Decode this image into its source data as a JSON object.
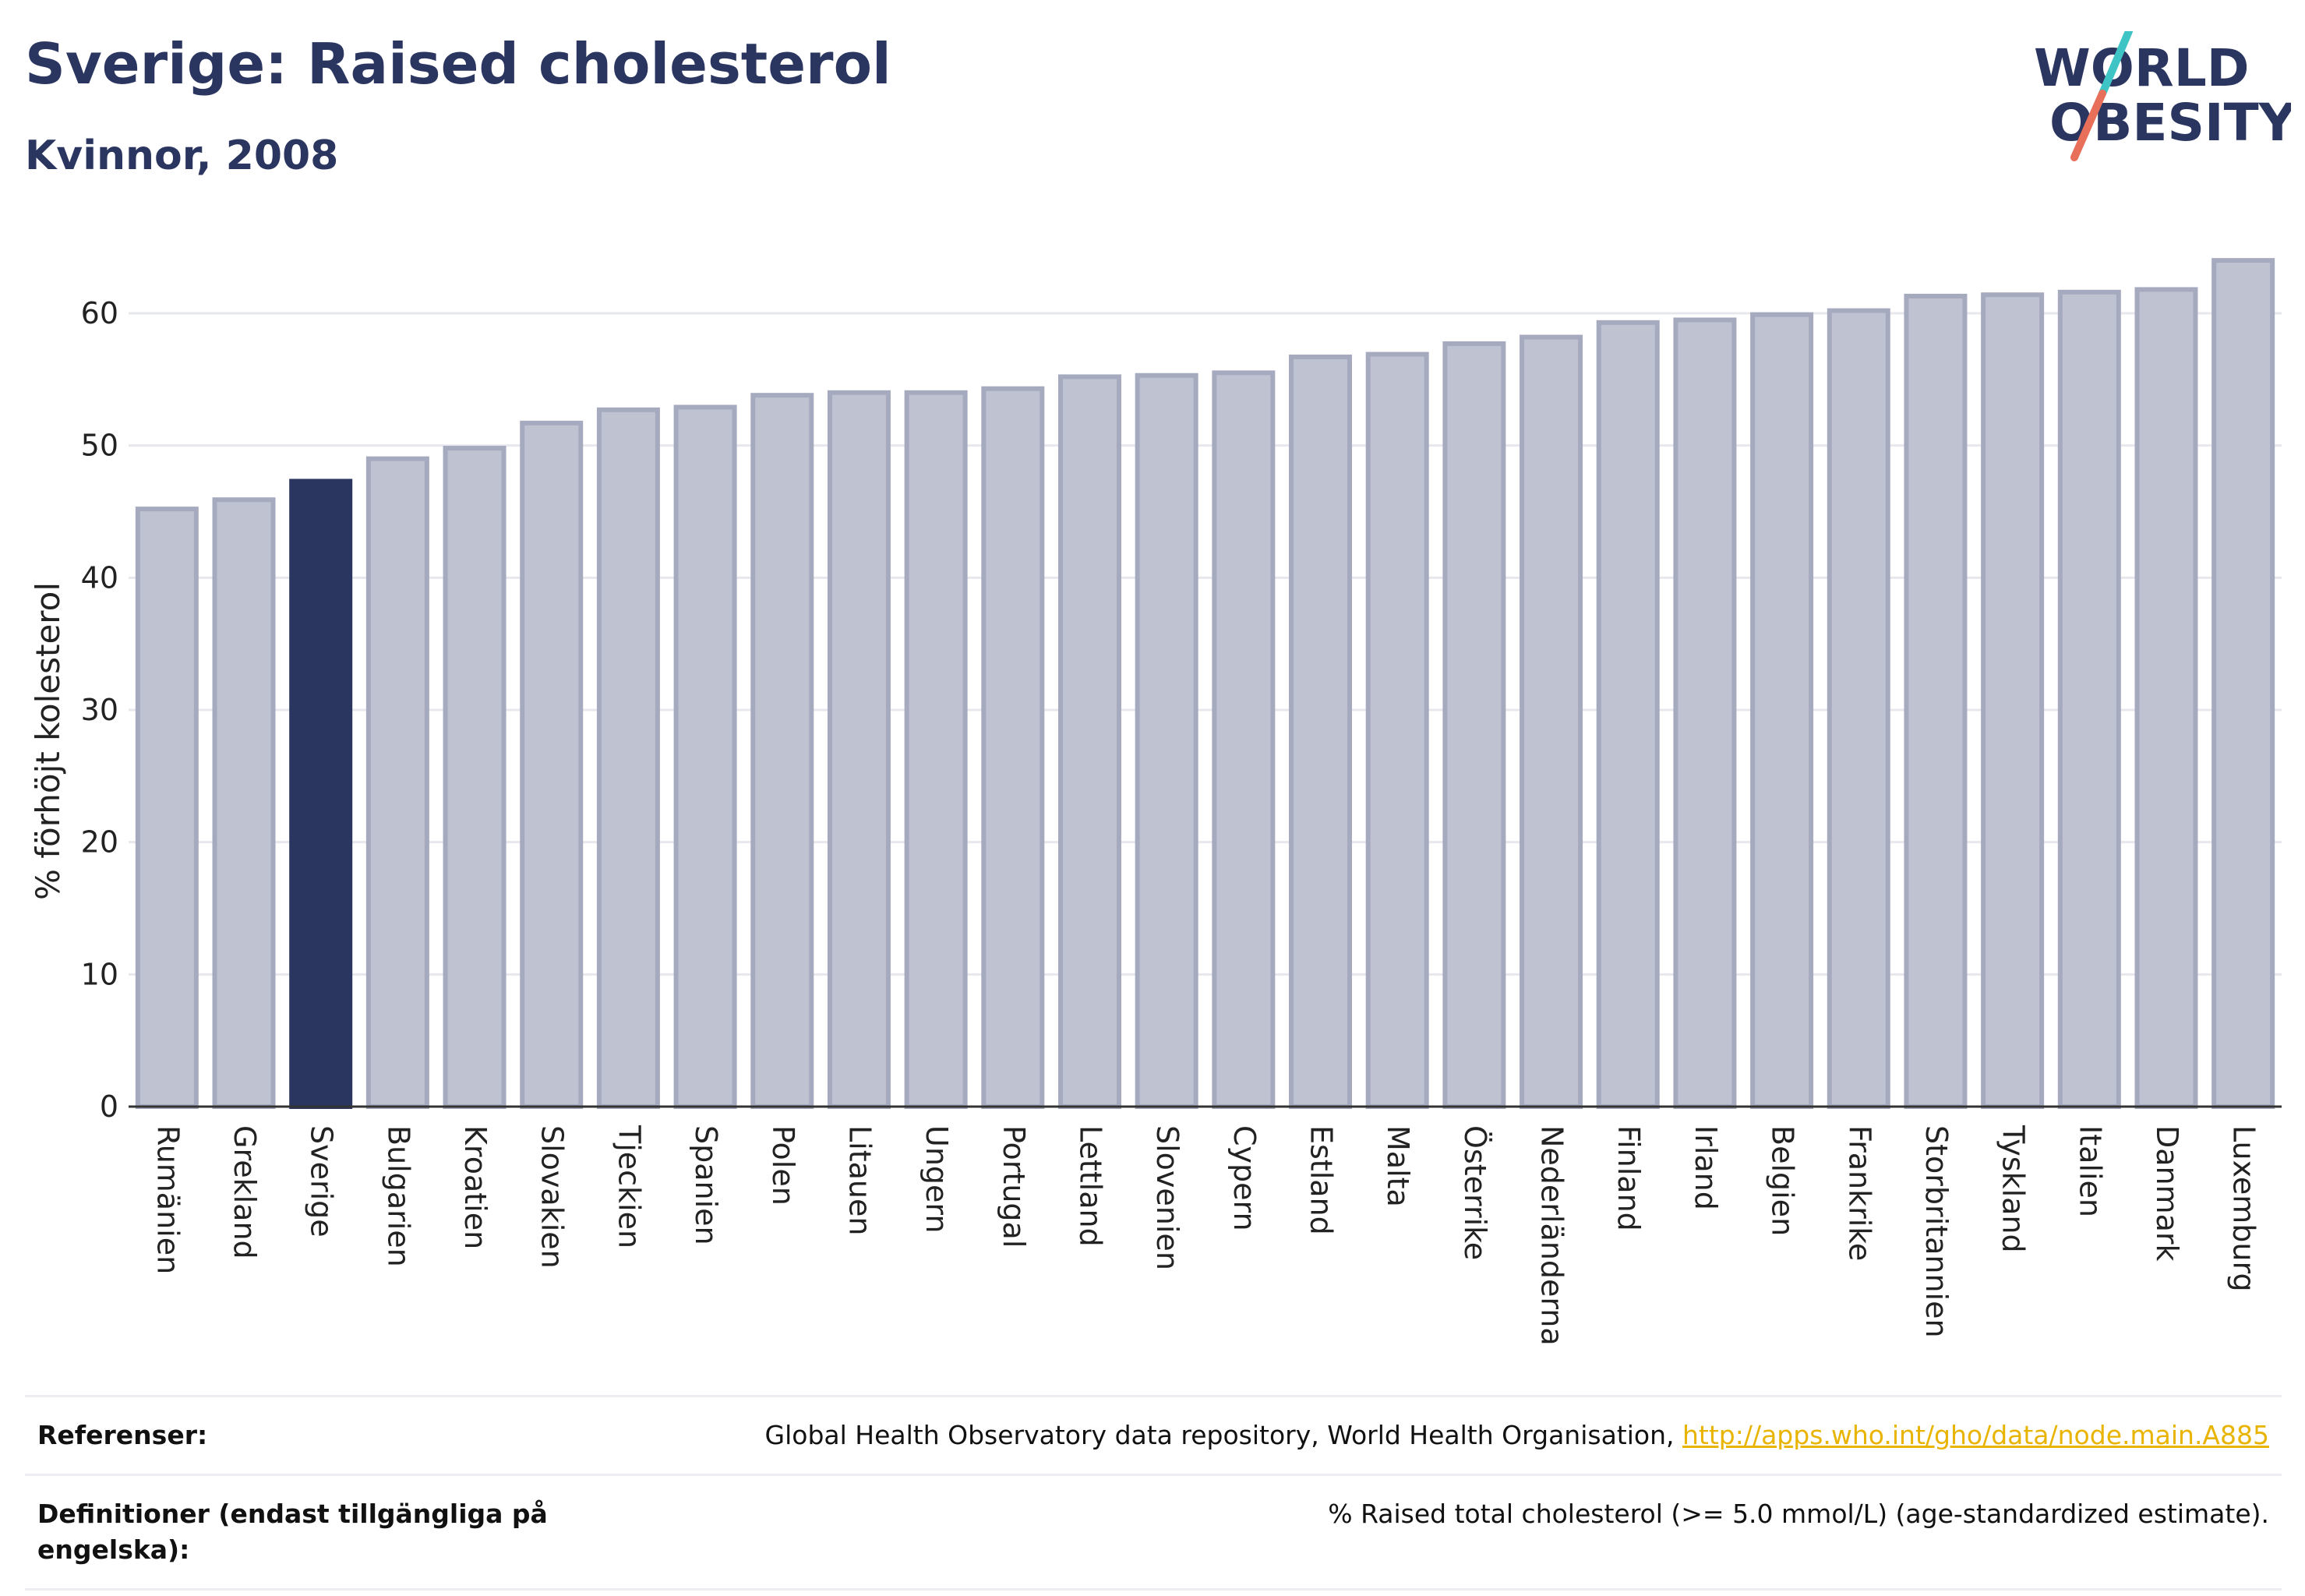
{
  "header": {
    "title": "Sverige: Raised cholesterol",
    "subtitle": "Kvinnor, 2008"
  },
  "logo": {
    "line1": "WORLD",
    "line2": "OBESITY"
  },
  "colors": {
    "highlight": "#2a3560",
    "bar_fill": "#bfc2d0",
    "bar_stroke": "#a6aabf",
    "text": "#2a3560",
    "link": "#e8b400",
    "logo_teal": "#3ec4c4",
    "logo_coral": "#e8705a"
  },
  "chart_data": {
    "type": "bar",
    "title": "Sverige: Raised cholesterol",
    "subtitle": "Kvinnor, 2008",
    "xlabel": "",
    "ylabel": "% förhöjt kolesterol",
    "ylim": [
      0,
      65
    ],
    "yticks": [
      0,
      10,
      20,
      30,
      40,
      50,
      60
    ],
    "grid": true,
    "highlight": "Sverige",
    "categories": [
      "Rumänien",
      "Grekland",
      "Sverige",
      "Bulgarien",
      "Kroatien",
      "Slovakien",
      "Tjeckien",
      "Spanien",
      "Polen",
      "Litauen",
      "Ungern",
      "Portugal",
      "Lettland",
      "Slovenien",
      "Cypern",
      "Estland",
      "Malta",
      "Österrike",
      "Nederländerna",
      "Finland",
      "Irland",
      "Belgien",
      "Frankrike",
      "Storbritannien",
      "Tyskland",
      "Italien",
      "Danmark",
      "Luxemburg"
    ],
    "values": [
      45.2,
      45.9,
      47.3,
      49.0,
      49.8,
      51.7,
      52.7,
      52.9,
      53.8,
      54.0,
      54.0,
      54.3,
      55.2,
      55.3,
      55.5,
      56.7,
      56.9,
      57.7,
      58.2,
      59.3,
      59.5,
      59.9,
      60.2,
      61.3,
      61.4,
      61.6,
      61.8,
      64.0
    ]
  },
  "references": [
    {
      "label": "Referenser:",
      "text": "Global Health Observatory data repository, World Health Organisation, ",
      "link": "http://apps.who.int/gho/data/node.main.A885"
    },
    {
      "label": "Definitioner (endast tillgängliga på engelska):",
      "text": "% Raised total cholesterol (>= 5.0 mmol/L) (age-standardized estimate).",
      "link": ""
    }
  ]
}
